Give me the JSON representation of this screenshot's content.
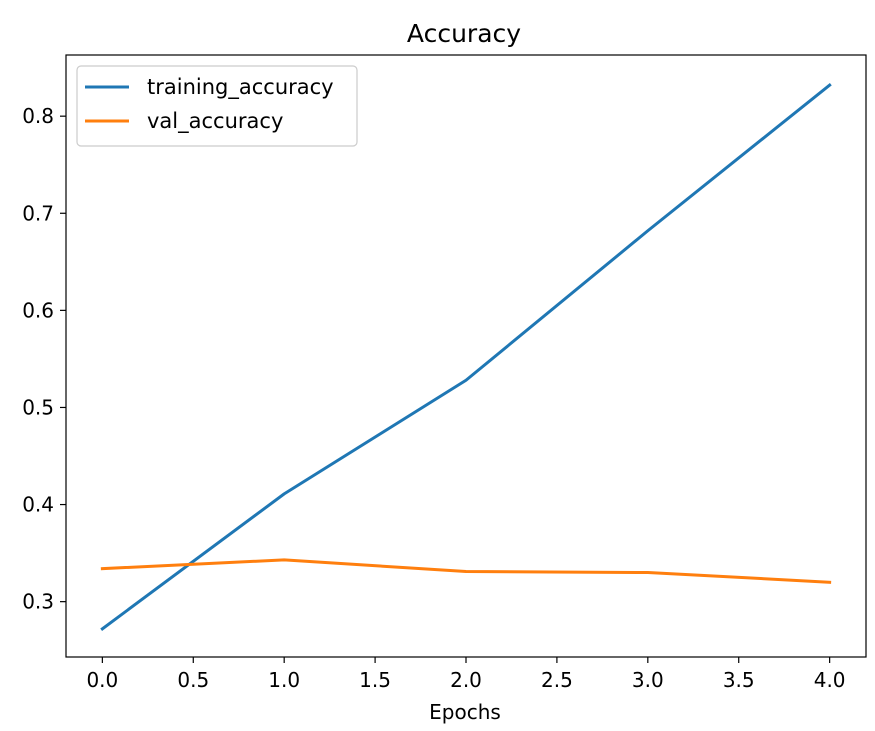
{
  "chart_data": {
    "type": "line",
    "title": "Accuracy",
    "xlabel": "Epochs",
    "ylabel": "",
    "x": [
      0,
      1,
      2,
      3,
      4
    ],
    "xlim": [
      -0.2,
      4.2
    ],
    "ylim": [
      0.243,
      0.863
    ],
    "xticks": [
      0.0,
      0.5,
      1.0,
      1.5,
      2.0,
      2.5,
      3.0,
      3.5,
      4.0
    ],
    "xtick_labels": [
      "0.0",
      "0.5",
      "1.0",
      "1.5",
      "2.0",
      "2.5",
      "3.0",
      "3.5",
      "4.0"
    ],
    "yticks": [
      0.3,
      0.4,
      0.5,
      0.6,
      0.7,
      0.8
    ],
    "ytick_labels": [
      "0.3",
      "0.4",
      "0.5",
      "0.6",
      "0.7",
      "0.8"
    ],
    "grid": false,
    "legend_position": "top-left",
    "series": [
      {
        "name": "training_accuracy",
        "color": "#1f77b4",
        "values": [
          0.272,
          0.411,
          0.528,
          0.682,
          0.832
        ]
      },
      {
        "name": "val_accuracy",
        "color": "#ff7f0e",
        "values": [
          0.334,
          0.343,
          0.331,
          0.33,
          0.32
        ]
      }
    ]
  }
}
